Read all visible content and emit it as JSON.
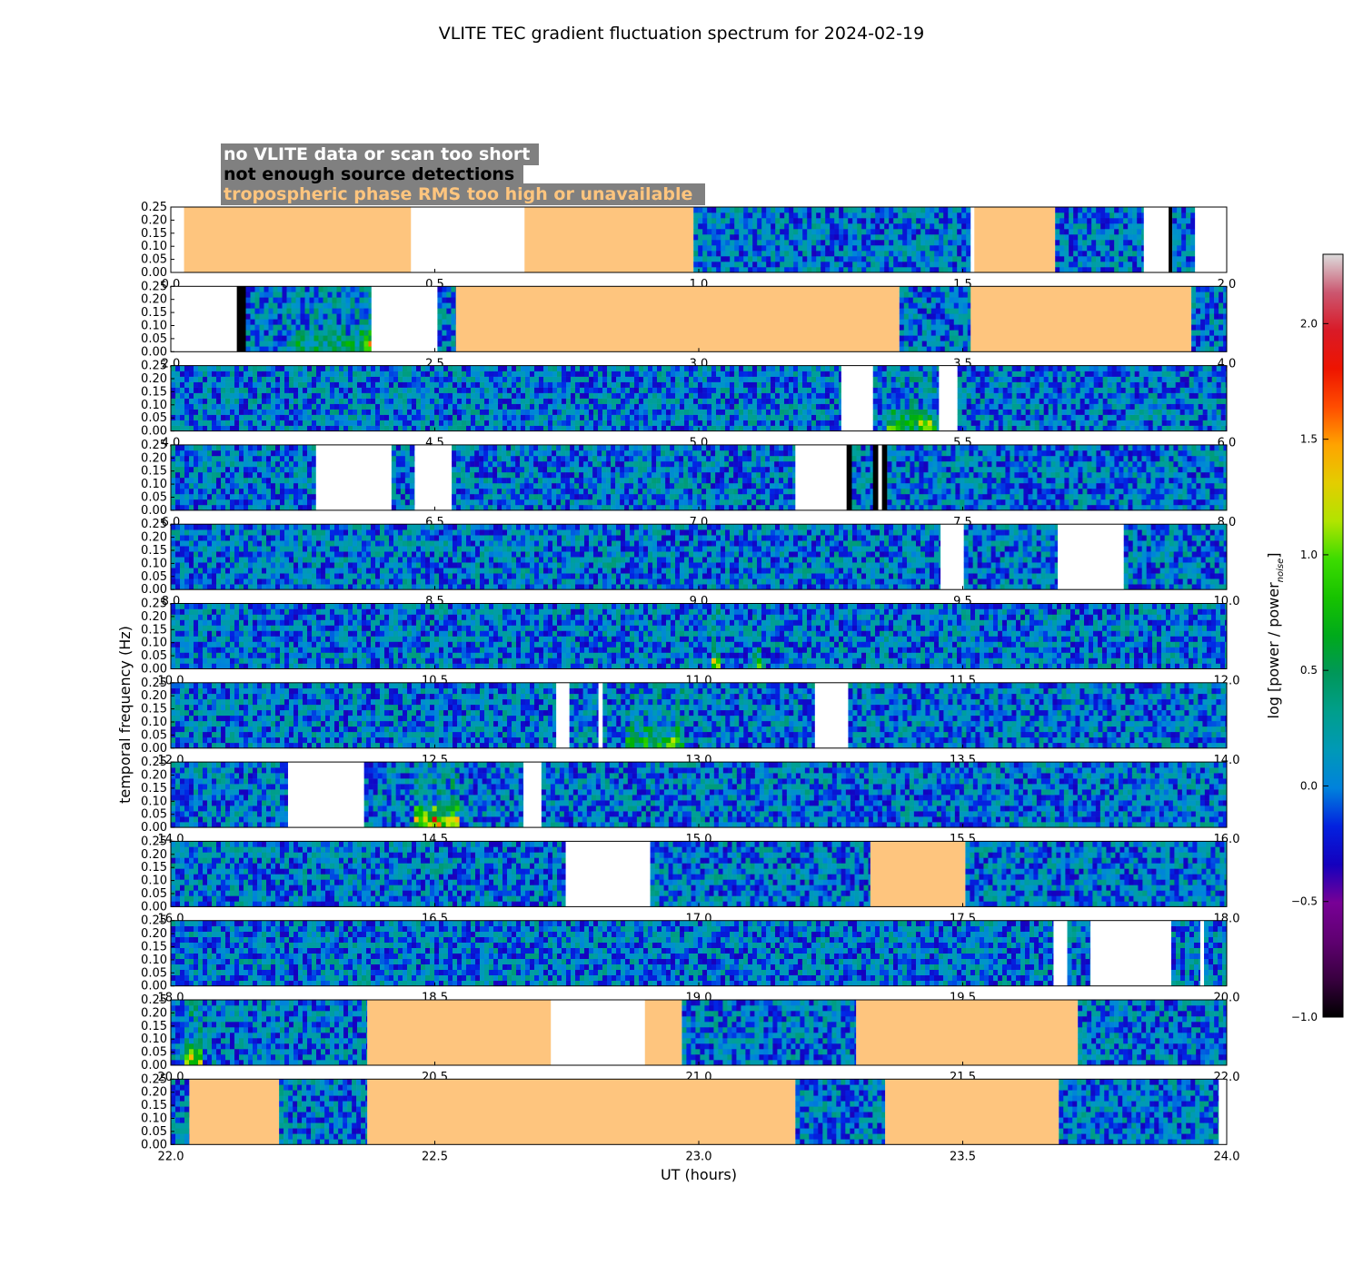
{
  "title": "VLITE TEC gradient fluctuation spectrum for 2024-02-19",
  "legend": {
    "items": [
      {
        "label": "no VLITE data or scan too short",
        "color": "#ffffff",
        "box": "#808080"
      },
      {
        "label": "not enough source detections",
        "color": "#000000",
        "box": "#808080"
      },
      {
        "label": "tropospheric phase RMS too high or unavailable",
        "color": "#fec57e",
        "box": "#808080"
      }
    ]
  },
  "chart_data": {
    "type": "heatmap",
    "title": "VLITE TEC gradient fluctuation spectrum for 2024-02-19",
    "xlabel": "UT (hours)",
    "ylabel": "temporal frequency (Hz)",
    "ylim": [
      0,
      0.25
    ],
    "yticks": [
      "0.00",
      "0.05",
      "0.10",
      "0.15",
      "0.20",
      "0.25"
    ],
    "colorbar": {
      "label": "log [power / power",
      "label_sub": "noise",
      "label_end": "]",
      "range": [
        -1.0,
        2.3
      ],
      "ticks": [
        "2.0",
        "1.5",
        "1.0",
        "0.5",
        "0.0",
        "−0.5",
        "−1.0"
      ],
      "tick_values": [
        2.0,
        1.5,
        1.0,
        0.5,
        0.0,
        -0.5,
        -1.0
      ]
    },
    "colors": {
      "tropo": "#fec57e",
      "nodata": "#ffffff",
      "nodet": "#000000"
    },
    "panels": [
      {
        "xlim": [
          0,
          2
        ],
        "xticks": [
          "0.0",
          "0.5",
          "1.0",
          "1.5",
          "2.0"
        ],
        "segments": [
          {
            "s": 0.0,
            "e": 0.025,
            "k": "nodata"
          },
          {
            "s": 0.025,
            "e": 0.455,
            "k": "tropo"
          },
          {
            "s": 0.455,
            "e": 0.67,
            "k": "nodata"
          },
          {
            "s": 0.67,
            "e": 0.99,
            "k": "tropo"
          },
          {
            "s": 0.99,
            "e": 1.515,
            "k": "data"
          },
          {
            "s": 1.515,
            "e": 1.522,
            "k": "nodata"
          },
          {
            "s": 1.522,
            "e": 1.675,
            "k": "tropo"
          },
          {
            "s": 1.675,
            "e": 1.843,
            "k": "data"
          },
          {
            "s": 1.843,
            "e": 1.89,
            "k": "nodata"
          },
          {
            "s": 1.89,
            "e": 1.897,
            "k": "nodet"
          },
          {
            "s": 1.897,
            "e": 1.94,
            "k": "data"
          },
          {
            "s": 1.94,
            "e": 2.0,
            "k": "nodata"
          }
        ]
      },
      {
        "xlim": [
          2,
          4
        ],
        "xticks": [
          "2.0",
          "2.5",
          "3.0",
          "3.5",
          "4.0"
        ],
        "segments": [
          {
            "s": 2.0,
            "e": 2.125,
            "k": "nodata"
          },
          {
            "s": 2.125,
            "e": 2.142,
            "k": "nodet"
          },
          {
            "s": 2.142,
            "e": 2.38,
            "k": "data",
            "hot": [
              {
                "s": 2.22,
                "e": 2.37,
                "level": 0.5
              },
              {
                "s": 2.36,
                "e": 2.38,
                "level": 1.2
              }
            ]
          },
          {
            "s": 2.38,
            "e": 2.505,
            "k": "nodata"
          },
          {
            "s": 2.505,
            "e": 2.54,
            "k": "data"
          },
          {
            "s": 2.54,
            "e": 3.38,
            "k": "tropo"
          },
          {
            "s": 3.38,
            "e": 3.515,
            "k": "data"
          },
          {
            "s": 3.515,
            "e": 3.933,
            "k": "tropo"
          },
          {
            "s": 3.933,
            "e": 4.0,
            "k": "data"
          }
        ]
      },
      {
        "xlim": [
          4,
          6
        ],
        "xticks": [
          "4.0",
          "4.5",
          "5.0",
          "5.5",
          "6.0"
        ],
        "segments": [
          {
            "s": 4.0,
            "e": 5.27,
            "k": "data"
          },
          {
            "s": 5.27,
            "e": 5.33,
            "k": "nodata"
          },
          {
            "s": 5.33,
            "e": 5.455,
            "k": "data",
            "hot": [
              {
                "s": 5.36,
                "e": 5.45,
                "level": 0.9
              }
            ]
          },
          {
            "s": 5.455,
            "e": 5.49,
            "k": "nodata"
          },
          {
            "s": 5.49,
            "e": 6.0,
            "k": "data"
          }
        ]
      },
      {
        "xlim": [
          6,
          8
        ],
        "xticks": [
          "6.0",
          "6.5",
          "7.0",
          "7.5",
          "8.0"
        ],
        "segments": [
          {
            "s": 6.0,
            "e": 6.275,
            "k": "data"
          },
          {
            "s": 6.275,
            "e": 6.418,
            "k": "nodata"
          },
          {
            "s": 6.418,
            "e": 6.462,
            "k": "data"
          },
          {
            "s": 6.462,
            "e": 6.532,
            "k": "nodata"
          },
          {
            "s": 6.532,
            "e": 7.183,
            "k": "data"
          },
          {
            "s": 7.183,
            "e": 7.28,
            "k": "nodata"
          },
          {
            "s": 7.28,
            "e": 7.29,
            "k": "nodet"
          },
          {
            "s": 7.29,
            "e": 7.33,
            "k": "data"
          },
          {
            "s": 7.33,
            "e": 7.34,
            "k": "nodet"
          },
          {
            "s": 7.34,
            "e": 7.347,
            "k": "nodata"
          },
          {
            "s": 7.347,
            "e": 7.357,
            "k": "nodet"
          },
          {
            "s": 7.357,
            "e": 8.0,
            "k": "data"
          }
        ]
      },
      {
        "xlim": [
          8,
          10
        ],
        "xticks": [
          "8.0",
          "8.5",
          "9.0",
          "9.5",
          "10.0"
        ],
        "segments": [
          {
            "s": 8.0,
            "e": 9.458,
            "k": "data"
          },
          {
            "s": 9.458,
            "e": 9.502,
            "k": "nodata"
          },
          {
            "s": 9.502,
            "e": 9.68,
            "k": "data"
          },
          {
            "s": 9.68,
            "e": 9.805,
            "k": "nodata"
          },
          {
            "s": 9.805,
            "e": 10.0,
            "k": "data"
          }
        ]
      },
      {
        "xlim": [
          10,
          12
        ],
        "xticks": [
          "10.0",
          "10.5",
          "11.0",
          "11.5",
          "12.0"
        ],
        "segments": [
          {
            "s": 10.0,
            "e": 12.0,
            "k": "data",
            "hot": [
              {
                "s": 11.02,
                "e": 11.04,
                "level": 1.1
              },
              {
                "s": 11.1,
                "e": 11.12,
                "level": 0.7
              }
            ]
          }
        ]
      },
      {
        "xlim": [
          12,
          14
        ],
        "xticks": [
          "12.0",
          "12.5",
          "13.0",
          "13.5",
          "14.0"
        ],
        "segments": [
          {
            "s": 12.0,
            "e": 12.73,
            "k": "data"
          },
          {
            "s": 12.73,
            "e": 12.755,
            "k": "nodata"
          },
          {
            "s": 12.755,
            "e": 12.81,
            "k": "data"
          },
          {
            "s": 12.81,
            "e": 12.818,
            "k": "nodata"
          },
          {
            "s": 12.818,
            "e": 13.22,
            "k": "data",
            "hot": [
              {
                "s": 12.86,
                "e": 12.97,
                "level": 0.75
              }
            ]
          },
          {
            "s": 13.22,
            "e": 13.283,
            "k": "nodata"
          },
          {
            "s": 13.283,
            "e": 14.0,
            "k": "data"
          }
        ]
      },
      {
        "xlim": [
          14,
          16
        ],
        "xticks": [
          "14.0",
          "14.5",
          "15.0",
          "15.5",
          "16.0"
        ],
        "segments": [
          {
            "s": 14.0,
            "e": 14.222,
            "k": "data"
          },
          {
            "s": 14.222,
            "e": 14.366,
            "k": "nodata"
          },
          {
            "s": 14.366,
            "e": 14.668,
            "k": "data",
            "hot": [
              {
                "s": 14.46,
                "e": 14.55,
                "level": 1.4
              }
            ]
          },
          {
            "s": 14.668,
            "e": 14.702,
            "k": "nodata"
          },
          {
            "s": 14.702,
            "e": 16.0,
            "k": "data"
          }
        ]
      },
      {
        "xlim": [
          16,
          18
        ],
        "xticks": [
          "16.0",
          "16.5",
          "17.0",
          "17.5",
          "18.0"
        ],
        "segments": [
          {
            "s": 16.0,
            "e": 16.748,
            "k": "data"
          },
          {
            "s": 16.748,
            "e": 16.908,
            "k": "nodata"
          },
          {
            "s": 16.908,
            "e": 17.325,
            "k": "data"
          },
          {
            "s": 17.325,
            "e": 17.505,
            "k": "tropo"
          },
          {
            "s": 17.505,
            "e": 18.0,
            "k": "data"
          }
        ]
      },
      {
        "xlim": [
          18,
          20
        ],
        "xticks": [
          "18.0",
          "18.5",
          "19.0",
          "19.5",
          "20.0"
        ],
        "segments": [
          {
            "s": 18.0,
            "e": 19.672,
            "k": "data"
          },
          {
            "s": 19.672,
            "e": 19.698,
            "k": "nodata"
          },
          {
            "s": 19.698,
            "e": 19.742,
            "k": "data"
          },
          {
            "s": 19.742,
            "e": 19.895,
            "k": "nodata"
          },
          {
            "s": 19.895,
            "e": 19.95,
            "k": "data"
          },
          {
            "s": 19.95,
            "e": 19.957,
            "k": "nodata"
          },
          {
            "s": 19.957,
            "e": 20.0,
            "k": "data"
          }
        ]
      },
      {
        "xlim": [
          20,
          22
        ],
        "xticks": [
          "20.0",
          "20.5",
          "21.0",
          "21.5",
          "22.0"
        ],
        "segments": [
          {
            "s": 20.0,
            "e": 20.372,
            "k": "data",
            "hot": [
              {
                "s": 20.03,
                "e": 20.06,
                "level": 1.3
              }
            ]
          },
          {
            "s": 20.372,
            "e": 20.72,
            "k": "tropo"
          },
          {
            "s": 20.72,
            "e": 20.898,
            "k": "nodata"
          },
          {
            "s": 20.898,
            "e": 20.968,
            "k": "tropo"
          },
          {
            "s": 20.968,
            "e": 21.298,
            "k": "data"
          },
          {
            "s": 21.298,
            "e": 21.718,
            "k": "tropo"
          },
          {
            "s": 21.718,
            "e": 22.0,
            "k": "data"
          }
        ]
      },
      {
        "xlim": [
          22,
          24
        ],
        "xticks": [
          "22.0",
          "22.5",
          "23.0",
          "23.5",
          "24.0"
        ],
        "segments": [
          {
            "s": 22.0,
            "e": 22.035,
            "k": "data"
          },
          {
            "s": 22.035,
            "e": 22.205,
            "k": "tropo"
          },
          {
            "s": 22.205,
            "e": 22.372,
            "k": "data"
          },
          {
            "s": 22.372,
            "e": 23.183,
            "k": "tropo"
          },
          {
            "s": 23.183,
            "e": 23.353,
            "k": "data"
          },
          {
            "s": 23.353,
            "e": 23.682,
            "k": "tropo"
          },
          {
            "s": 23.682,
            "e": 23.985,
            "k": "data"
          },
          {
            "s": 23.985,
            "e": 24.0,
            "k": "nodata"
          }
        ]
      }
    ]
  }
}
